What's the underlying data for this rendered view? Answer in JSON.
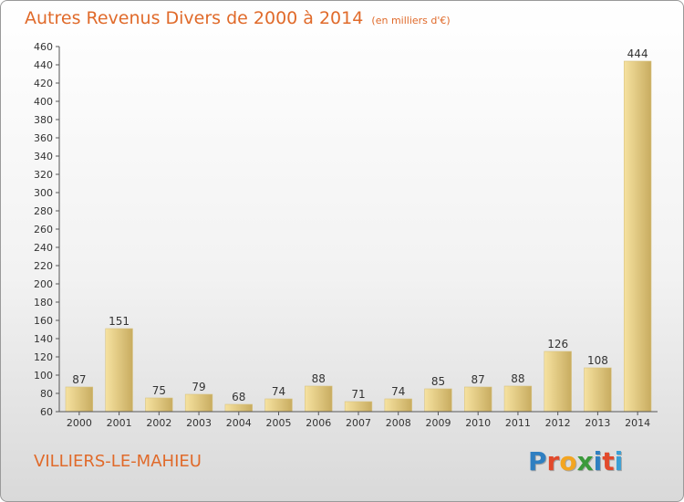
{
  "header": {
    "title": "Autres Revenus Divers de 2000 à 2014",
    "unit": "(en milliers d'€)"
  },
  "footer": {
    "commune": "VILLIERS-LE-MAHIEU",
    "logo_letters": [
      "P",
      "r",
      "o",
      "x",
      "i",
      "t",
      "i"
    ],
    "logo_colors": [
      "#2f7fc1",
      "#e2492b",
      "#f3a521",
      "#3a9a3a",
      "#2f7fc1",
      "#e2492b",
      "#3aa0d6"
    ]
  },
  "colors": {
    "accent": "#e06a2a",
    "bar_light": "#f6e2a0",
    "bar_dark": "#c8ac60"
  },
  "chart_data": {
    "type": "bar",
    "title": "Autres Revenus Divers de 2000 à 2014",
    "xlabel": "",
    "ylabel": "",
    "ylim": [
      60,
      460
    ],
    "yticks": [
      60,
      80,
      100,
      120,
      140,
      160,
      180,
      200,
      220,
      240,
      260,
      280,
      300,
      320,
      340,
      360,
      380,
      400,
      420,
      440,
      460
    ],
    "grid": false,
    "categories": [
      "2000",
      "2001",
      "2002",
      "2003",
      "2004",
      "2005",
      "2006",
      "2007",
      "2008",
      "2009",
      "2010",
      "2011",
      "2012",
      "2013",
      "2014"
    ],
    "values": [
      87,
      151,
      75,
      79,
      68,
      74,
      88,
      71,
      74,
      85,
      87,
      88,
      126,
      108,
      444
    ]
  }
}
